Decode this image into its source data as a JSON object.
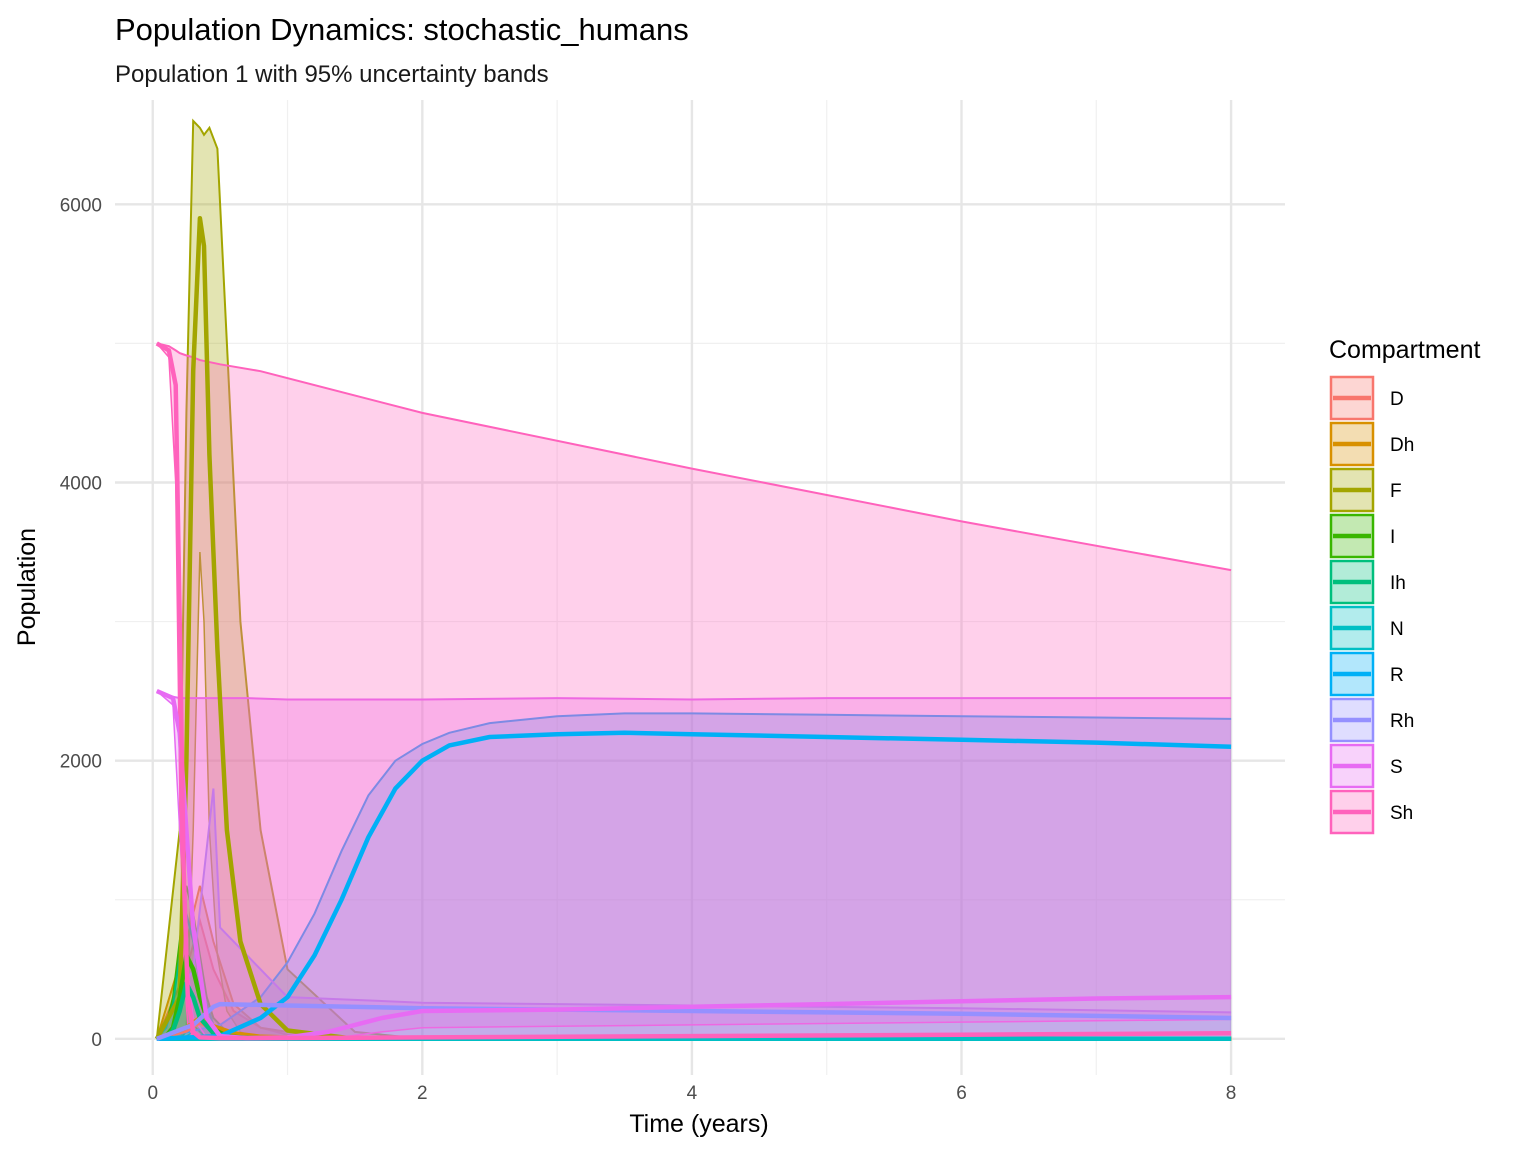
{
  "chart_data": {
    "type": "area",
    "title": "Population Dynamics: stochastic_humans",
    "subtitle": "Population 1 with 95% uncertainty bands",
    "xlabel": "Time (years)",
    "ylabel": "Population",
    "xlim": [
      -0.28,
      8.4
    ],
    "ylim": [
      -260,
      6750
    ],
    "x_ticks": [
      0,
      2,
      4,
      6,
      8
    ],
    "y_ticks": [
      0,
      2000,
      4000,
      6000
    ],
    "x_tick_labels": [
      "0",
      "2",
      "4",
      "6",
      "8"
    ],
    "y_tick_labels": [
      "0",
      "2000",
      "4000",
      "6000"
    ],
    "grid": true,
    "legend": {
      "title": "Compartment",
      "position": "right"
    },
    "series": [
      {
        "name": "D",
        "color": "#F8766D",
        "x": [
          0.03,
          0.25,
          0.35,
          0.45,
          0.6,
          0.8,
          1.0,
          1.3,
          2,
          4,
          8
        ],
        "mean": [
          0,
          60,
          120,
          70,
          30,
          10,
          5,
          2,
          0,
          0,
          0
        ],
        "lower": [
          0,
          0,
          0,
          0,
          0,
          0,
          0,
          0,
          0,
          0,
          0
        ],
        "upper": [
          0,
          500,
          850,
          500,
          200,
          80,
          30,
          10,
          5,
          0,
          0
        ]
      },
      {
        "name": "Dh",
        "color": "#D89000",
        "x": [
          0.03,
          0.25,
          0.35,
          0.45,
          0.6,
          0.8,
          1.2,
          2,
          4,
          8
        ],
        "mean": [
          0,
          80,
          150,
          90,
          40,
          15,
          5,
          0,
          0,
          0
        ],
        "lower": [
          0,
          0,
          0,
          0,
          0,
          0,
          0,
          0,
          0,
          0
        ],
        "upper": [
          0,
          700,
          1100,
          700,
          250,
          80,
          20,
          5,
          0,
          0
        ]
      },
      {
        "name": "F",
        "color": "#A3A500",
        "x": [
          0.03,
          0.2,
          0.25,
          0.3,
          0.35,
          0.38,
          0.42,
          0.48,
          0.55,
          0.65,
          0.8,
          1.0,
          1.5,
          2,
          4,
          8
        ],
        "mean": [
          0,
          300,
          2000,
          4800,
          5900,
          5700,
          4200,
          2800,
          1500,
          700,
          250,
          60,
          0,
          0,
          0,
          0
        ],
        "lower": [
          0,
          0,
          100,
          1500,
          3500,
          3000,
          1500,
          600,
          200,
          50,
          0,
          0,
          0,
          0,
          0,
          0
        ],
        "upper": [
          0,
          1500,
          4500,
          6600,
          6550,
          6500,
          6550,
          6400,
          5000,
          3000,
          1500,
          500,
          50,
          0,
          0,
          0
        ]
      },
      {
        "name": "I",
        "color": "#39B600",
        "x": [
          0.03,
          0.1,
          0.15,
          0.2,
          0.25,
          0.3,
          0.35,
          0.4,
          0.45,
          0.55,
          0.7,
          1.0,
          2,
          8
        ],
        "mean": [
          0,
          20,
          80,
          300,
          600,
          500,
          300,
          150,
          70,
          20,
          5,
          0,
          0,
          0
        ],
        "lower": [
          0,
          0,
          0,
          0,
          50,
          100,
          50,
          10,
          0,
          0,
          0,
          0,
          0,
          0
        ],
        "upper": [
          0,
          100,
          300,
          700,
          1100,
          900,
          600,
          300,
          150,
          50,
          10,
          0,
          0,
          0
        ]
      },
      {
        "name": "Ih",
        "color": "#00BF7D",
        "x": [
          0.03,
          0.1,
          0.15,
          0.2,
          0.25,
          0.3,
          0.35,
          0.45,
          0.6,
          1.0,
          2,
          8
        ],
        "mean": [
          0,
          15,
          60,
          200,
          400,
          300,
          150,
          40,
          10,
          0,
          0,
          0
        ],
        "lower": [
          0,
          0,
          0,
          0,
          20,
          50,
          20,
          0,
          0,
          0,
          0,
          0
        ],
        "upper": [
          0,
          80,
          250,
          600,
          900,
          700,
          400,
          100,
          20,
          0,
          0,
          0
        ]
      },
      {
        "name": "N",
        "color": "#00BFC4",
        "x": [
          0.03,
          8
        ],
        "mean": [
          0,
          0
        ],
        "lower": [
          0,
          0
        ],
        "upper": [
          0,
          0
        ]
      },
      {
        "name": "R",
        "color": "#00B0F6",
        "x": [
          0.03,
          0.5,
          0.8,
          1.0,
          1.2,
          1.4,
          1.6,
          1.8,
          2.0,
          2.2,
          2.5,
          3.0,
          3.5,
          4.0,
          5.0,
          6.0,
          7.0,
          8.0
        ],
        "mean": [
          0,
          20,
          150,
          300,
          600,
          1000,
          1450,
          1800,
          2000,
          2110,
          2170,
          2190,
          2200,
          2190,
          2170,
          2150,
          2130,
          2100
        ],
        "lower": [
          0,
          0,
          0,
          0,
          0,
          0,
          0,
          0,
          0,
          0,
          0,
          0,
          0,
          0,
          0,
          0,
          0,
          0
        ],
        "upper": [
          0,
          100,
          300,
          550,
          900,
          1350,
          1750,
          2000,
          2120,
          2200,
          2270,
          2320,
          2340,
          2340,
          2330,
          2320,
          2310,
          2300
        ]
      },
      {
        "name": "Rh",
        "color": "#9590FF",
        "x": [
          0.03,
          0.3,
          0.45,
          0.5,
          1.0,
          2,
          4,
          6,
          8
        ],
        "mean": [
          0,
          100,
          230,
          250,
          240,
          220,
          200,
          180,
          150
        ],
        "lower": [
          0,
          0,
          0,
          0,
          0,
          0,
          0,
          0,
          0
        ],
        "upper": [
          0,
          500,
          1800,
          800,
          300,
          260,
          240,
          220,
          190
        ]
      },
      {
        "name": "S",
        "color": "#E76BF3",
        "x": [
          0.03,
          0.15,
          0.2,
          0.25,
          0.3,
          0.4,
          0.5,
          0.7,
          1.0,
          1.3,
          1.7,
          2,
          3,
          4,
          5,
          6,
          7,
          8
        ],
        "mean": [
          2500,
          2450,
          2200,
          1500,
          800,
          150,
          20,
          5,
          10,
          50,
          150,
          200,
          210,
          230,
          250,
          270,
          290,
          300
        ],
        "lower": [
          2500,
          2400,
          1500,
          600,
          150,
          10,
          0,
          0,
          0,
          0,
          50,
          80,
          90,
          100,
          110,
          120,
          130,
          140
        ],
        "upper": [
          2500,
          2460,
          2450,
          2450,
          2450,
          2450,
          2450,
          2450,
          2440,
          2440,
          2440,
          2440,
          2450,
          2440,
          2450,
          2450,
          2450,
          2450
        ]
      },
      {
        "name": "Sh",
        "color": "#FF62BC",
        "x": [
          0.03,
          0.12,
          0.17,
          0.2,
          0.23,
          0.26,
          0.3,
          0.35,
          0.5,
          0.8,
          2,
          4,
          6,
          8
        ],
        "mean": [
          5000,
          4950,
          4700,
          3000,
          1200,
          300,
          50,
          10,
          5,
          5,
          10,
          20,
          30,
          40
        ],
        "lower": [
          5000,
          4900,
          4000,
          1800,
          500,
          100,
          10,
          0,
          0,
          0,
          0,
          0,
          0,
          0
        ],
        "upper": [
          5000,
          4980,
          4950,
          4930,
          4920,
          4910,
          4900,
          4880,
          4850,
          4800,
          4500,
          4100,
          3720,
          3370
        ]
      }
    ]
  }
}
